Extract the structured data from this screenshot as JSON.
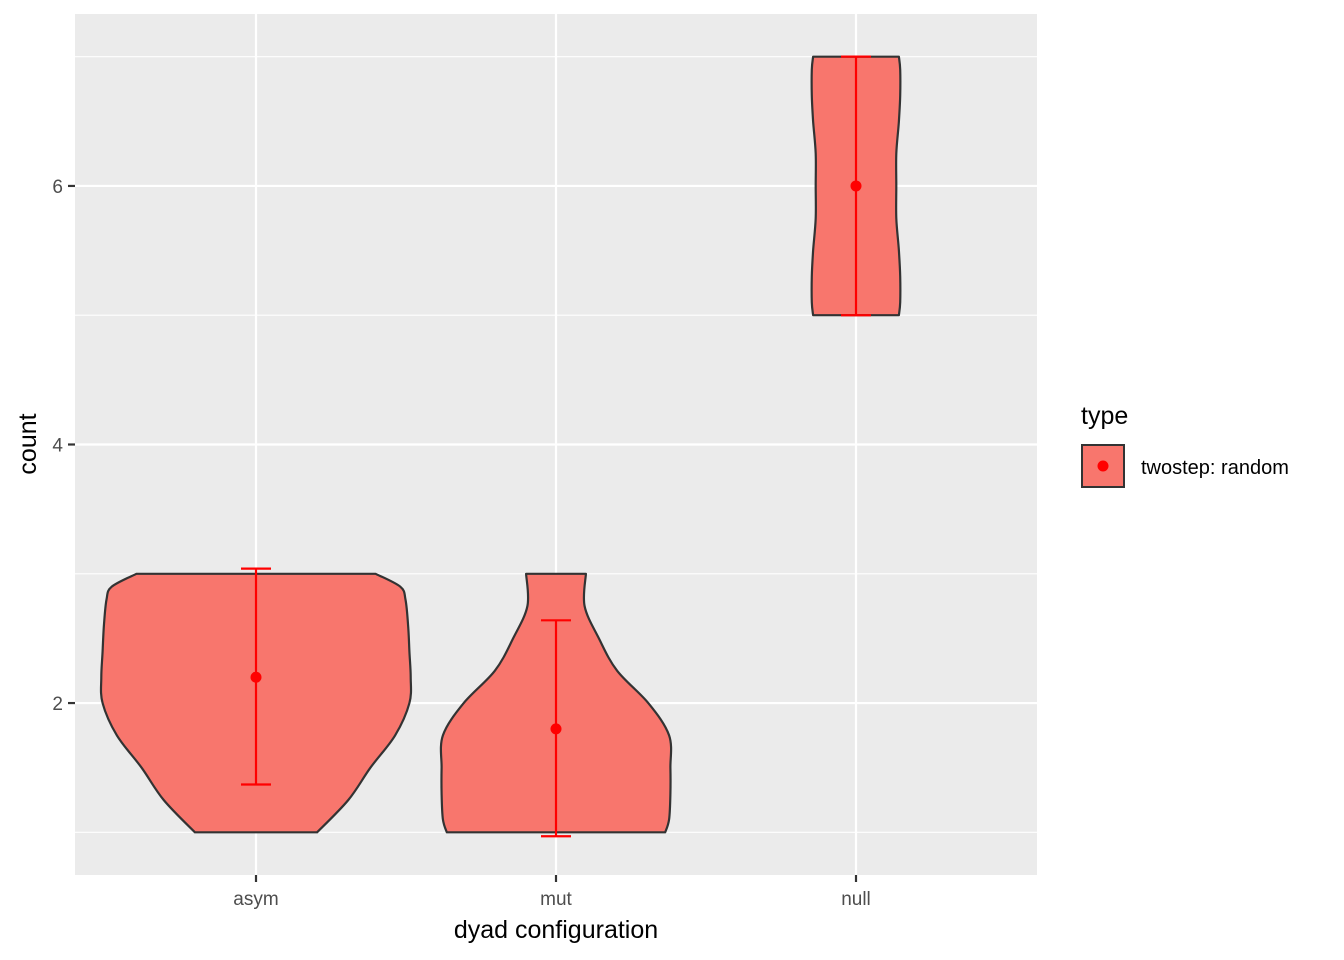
{
  "chart_data": {
    "type": "violin",
    "categories": [
      "asym",
      "mut",
      "null"
    ],
    "xlabel": "dyad configuration",
    "ylabel": "count",
    "yticks": [
      2,
      4,
      6
    ],
    "ylim": [
      0.67,
      7.33
    ],
    "grid": true,
    "legend": {
      "title": "type",
      "placement": "right",
      "entries": [
        {
          "label": "twostep: random",
          "fill": "#F8766D",
          "point": "#FF0000"
        }
      ]
    },
    "colors": {
      "violin_fill": "#F8766D",
      "violin_outline": "#333333",
      "summary": "#FF0000",
      "panel_background": "#EBEBEB",
      "gridline": "#FFFFFF"
    },
    "series": [
      {
        "category": "asym",
        "range": [
          1,
          3
        ],
        "mean": 2.2,
        "error_low": 1.37,
        "error_high": 3.04,
        "density": [
          [
            1.0,
            0.47
          ],
          [
            1.25,
            0.71
          ],
          [
            1.5,
            0.88
          ],
          [
            1.75,
            1.07
          ],
          [
            2.0,
            1.18
          ],
          [
            2.2,
            1.19
          ],
          [
            2.4,
            1.18
          ],
          [
            2.6,
            1.17
          ],
          [
            2.8,
            1.15
          ],
          [
            2.9,
            1.11
          ],
          [
            3.0,
            0.92
          ]
        ]
      },
      {
        "category": "mut",
        "range": [
          1,
          3
        ],
        "mean": 1.8,
        "error_low": 0.97,
        "error_high": 2.64,
        "density": [
          [
            1.0,
            0.84
          ],
          [
            1.1,
            0.87
          ],
          [
            1.3,
            0.88
          ],
          [
            1.5,
            0.88
          ],
          [
            1.75,
            0.87
          ],
          [
            2.0,
            0.71
          ],
          [
            2.25,
            0.47
          ],
          [
            2.5,
            0.33
          ],
          [
            2.75,
            0.22
          ],
          [
            3.0,
            0.23
          ]
        ]
      },
      {
        "category": "null",
        "range": [
          5,
          7
        ],
        "mean": 6.0,
        "error_low": 5.0,
        "error_high": 7.0,
        "density": [
          [
            5.0,
            0.33
          ],
          [
            5.1,
            0.34
          ],
          [
            5.3,
            0.34
          ],
          [
            5.5,
            0.33
          ],
          [
            5.75,
            0.31
          ],
          [
            6.0,
            0.31
          ],
          [
            6.25,
            0.31
          ],
          [
            6.5,
            0.33
          ],
          [
            6.7,
            0.34
          ],
          [
            6.9,
            0.34
          ],
          [
            7.0,
            0.33
          ]
        ]
      }
    ]
  }
}
